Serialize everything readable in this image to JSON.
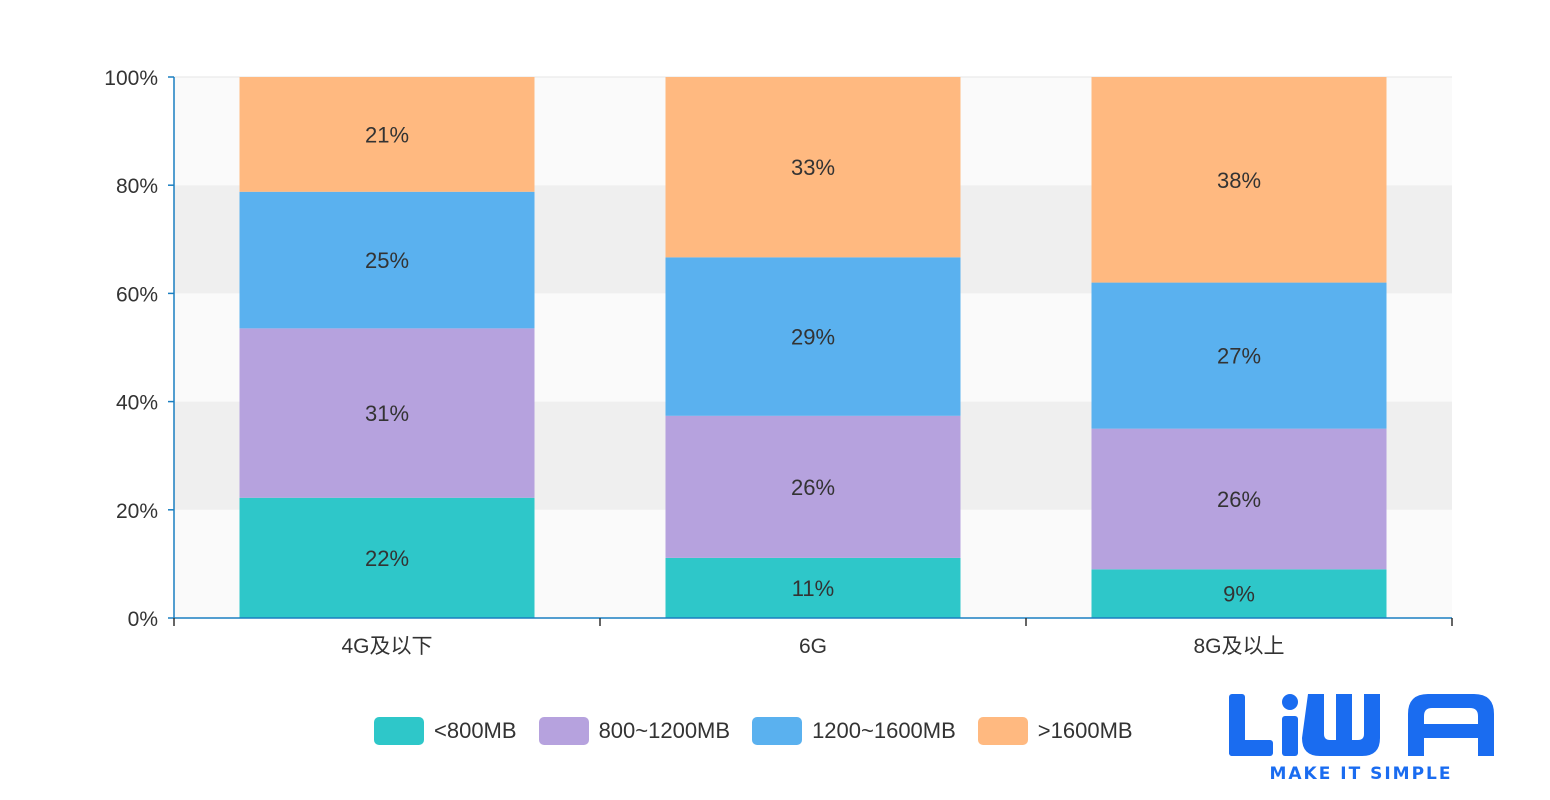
{
  "chart_data": {
    "type": "bar",
    "stacked": true,
    "categories": [
      "4G及以下",
      "6G",
      "8G及以上"
    ],
    "series": [
      {
        "name": "<800MB",
        "color": "#2ec7c9",
        "values": [
          22,
          11,
          9
        ]
      },
      {
        "name": "800~1200MB",
        "color": "#b6a2de",
        "values": [
          31,
          26,
          26
        ]
      },
      {
        "name": "1200~1600MB",
        "color": "#5ab1ef",
        "values": [
          25,
          29,
          27
        ]
      },
      {
        "name": ">1600MB",
        "color": "#ffb980",
        "values": [
          21,
          33,
          38
        ]
      }
    ],
    "bar_labels": [
      [
        "22%",
        "11%",
        "9%"
      ],
      [
        "31%",
        "26%",
        "26%"
      ],
      [
        "25%",
        "29%",
        "27%"
      ],
      [
        "21%",
        "33%",
        "38%"
      ]
    ],
    "y_ticks": [
      "0%",
      "20%",
      "40%",
      "60%",
      "80%",
      "100%"
    ],
    "ylim": [
      0,
      100
    ],
    "grid": "alternating-bands",
    "legend_position": "bottom-center",
    "axis_color": "#1a7fc1"
  },
  "logo": {
    "brand": "LiWA",
    "tagline": "MAKE IT SIMPLE",
    "color": "#1a6cf0"
  }
}
